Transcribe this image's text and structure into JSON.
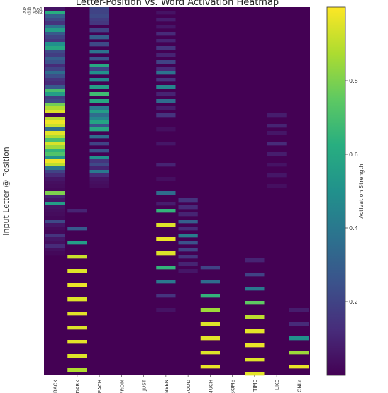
{
  "chart_data": {
    "type": "heatmap",
    "title": "Letter-Position vs. Word Activation Heatmap",
    "ylabel": "Input Letter @ Position",
    "colorbar_label": "Activation Strength",
    "colormap": "viridis",
    "value_range": [
      0.0,
      1.0
    ],
    "colorbar_ticks": [
      "0.2",
      "0.4",
      "0.6",
      "0.8"
    ],
    "columns": [
      "BACK",
      "DARK",
      "EACH",
      "FROM",
      "JUST",
      "BEEN",
      "GOOD",
      "MUCH",
      "SOME",
      "TIME",
      "LIKE",
      "ONLY"
    ],
    "rows_visible_labels": [
      "A @ Pos1",
      "A @ Pos2"
    ],
    "row_count": 104,
    "background_value": 0.0,
    "bands": [
      {
        "column": "BACK",
        "rows": [
          [
            0,
            0.05
          ],
          [
            1,
            0.62
          ],
          [
            2,
            0.3
          ],
          [
            3,
            0.22
          ],
          [
            4,
            0.15
          ],
          [
            5,
            0.38
          ],
          [
            6,
            0.55
          ],
          [
            7,
            0.28
          ],
          [
            8,
            0.2
          ],
          [
            9,
            0.16
          ],
          [
            10,
            0.5
          ],
          [
            11,
            0.6
          ],
          [
            12,
            0.22
          ],
          [
            13,
            0.18
          ],
          [
            14,
            0.3
          ],
          [
            15,
            0.25
          ],
          [
            16,
            0.12
          ],
          [
            17,
            0.2
          ],
          [
            18,
            0.35
          ],
          [
            19,
            0.24
          ],
          [
            20,
            0.15
          ],
          [
            21,
            0.12
          ],
          [
            22,
            0.28
          ],
          [
            23,
            0.7
          ],
          [
            24,
            0.55
          ],
          [
            25,
            0.18
          ],
          [
            26,
            0.22
          ],
          [
            27,
            0.78
          ],
          [
            28,
            0.88
          ],
          [
            29,
            0.95
          ],
          [
            30,
            0.02
          ],
          [
            31,
            0.9
          ],
          [
            32,
            0.98
          ],
          [
            33,
            0.92
          ],
          [
            34,
            0.35
          ],
          [
            35,
            0.96
          ],
          [
            36,
            0.88
          ],
          [
            37,
            0.7
          ],
          [
            38,
            0.94
          ],
          [
            39,
            0.85
          ],
          [
            40,
            0.65
          ],
          [
            41,
            0.72
          ],
          [
            42,
            0.5
          ],
          [
            43,
            0.98
          ],
          [
            44,
            0.9
          ],
          [
            45,
            0.4
          ],
          [
            46,
            0.2
          ],
          [
            47,
            0.12
          ],
          [
            48,
            0.06
          ],
          [
            49,
            0.04
          ],
          [
            50,
            0.03
          ],
          [
            51,
            0.02
          ],
          [
            52,
            0.8
          ],
          [
            53,
            0.1
          ],
          [
            54,
            0.06
          ],
          [
            55,
            0.55
          ],
          [
            56,
            0.05
          ],
          [
            57,
            0.04
          ],
          [
            58,
            0.03
          ],
          [
            59,
            0.02
          ],
          [
            60,
            0.22
          ],
          [
            61,
            0.06
          ],
          [
            62,
            0.03
          ],
          [
            63,
            0.02
          ],
          [
            64,
            0.15
          ],
          [
            65,
            0.06
          ],
          [
            66,
            0.04
          ],
          [
            67,
            0.12
          ],
          [
            68,
            0.04
          ],
          [
            69,
            0.02
          ]
        ]
      },
      {
        "column": "DARK",
        "rows": [
          [
            57,
            0.1
          ],
          [
            62,
            0.28
          ],
          [
            66,
            0.55
          ],
          [
            70,
            0.92
          ],
          [
            74,
            0.95
          ],
          [
            78,
            0.97
          ],
          [
            82,
            0.95
          ],
          [
            86,
            0.96
          ],
          [
            90,
            0.95
          ],
          [
            94,
            0.96
          ],
          [
            98,
            0.95
          ],
          [
            102,
            0.88
          ]
        ]
      },
      {
        "column": "EACH",
        "rows": [
          [
            0,
            0.2
          ],
          [
            1,
            0.2
          ],
          [
            2,
            0.22
          ],
          [
            3,
            0.18
          ],
          [
            4,
            0.16
          ],
          [
            6,
            0.2
          ],
          [
            8,
            0.3
          ],
          [
            10,
            0.22
          ],
          [
            12,
            0.38
          ],
          [
            14,
            0.25
          ],
          [
            16,
            0.6
          ],
          [
            17,
            0.2
          ],
          [
            18,
            0.5
          ],
          [
            20,
            0.45
          ],
          [
            22,
            0.55
          ],
          [
            24,
            0.68
          ],
          [
            26,
            0.6
          ],
          [
            28,
            0.4
          ],
          [
            29,
            0.55
          ],
          [
            30,
            0.35
          ],
          [
            31,
            0.45
          ],
          [
            32,
            0.58
          ],
          [
            33,
            0.25
          ],
          [
            34,
            0.6
          ],
          [
            36,
            0.35
          ],
          [
            38,
            0.2
          ],
          [
            40,
            0.25
          ],
          [
            42,
            0.5
          ],
          [
            43,
            0.15
          ],
          [
            44,
            0.22
          ],
          [
            45,
            0.1
          ],
          [
            46,
            0.4
          ],
          [
            47,
            0.12
          ],
          [
            48,
            0.05
          ],
          [
            49,
            0.04
          ],
          [
            50,
            0.03
          ]
        ]
      },
      {
        "column": "BEEN",
        "rows": [
          [
            1,
            0.05
          ],
          [
            3,
            0.08
          ],
          [
            5,
            0.06
          ],
          [
            7,
            0.12
          ],
          [
            9,
            0.1
          ],
          [
            11,
            0.15
          ],
          [
            13,
            0.1
          ],
          [
            15,
            0.2
          ],
          [
            17,
            0.12
          ],
          [
            18,
            0.38
          ],
          [
            20,
            0.15
          ],
          [
            22,
            0.45
          ],
          [
            24,
            0.1
          ],
          [
            26,
            0.35
          ],
          [
            28,
            0.08
          ],
          [
            30,
            0.15
          ],
          [
            34,
            0.04
          ],
          [
            38,
            0.06
          ],
          [
            44,
            0.1
          ],
          [
            48,
            0.04
          ],
          [
            52,
            0.35
          ],
          [
            55,
            0.08
          ],
          [
            57,
            0.65
          ],
          [
            61,
            0.95
          ],
          [
            65,
            0.97
          ],
          [
            69,
            0.95
          ],
          [
            73,
            0.65
          ],
          [
            77,
            0.4
          ],
          [
            81,
            0.15
          ],
          [
            85,
            0.05
          ]
        ]
      },
      {
        "column": "GOOD",
        "rows": [
          [
            54,
            0.15
          ],
          [
            56,
            0.12
          ],
          [
            58,
            0.1
          ],
          [
            60,
            0.3
          ],
          [
            62,
            0.12
          ],
          [
            64,
            0.42
          ],
          [
            66,
            0.25
          ],
          [
            68,
            0.2
          ],
          [
            70,
            0.15
          ],
          [
            72,
            0.1
          ],
          [
            74,
            0.06
          ]
        ]
      },
      {
        "column": "MUCH",
        "rows": [
          [
            73,
            0.2
          ],
          [
            77,
            0.35
          ],
          [
            81,
            0.65
          ],
          [
            85,
            0.85
          ],
          [
            89,
            0.95
          ],
          [
            93,
            0.96
          ],
          [
            97,
            0.95
          ],
          [
            101,
            0.97
          ]
        ]
      },
      {
        "column": "TIME",
        "rows": [
          [
            71,
            0.1
          ],
          [
            75,
            0.2
          ],
          [
            79,
            0.4
          ],
          [
            83,
            0.75
          ],
          [
            87,
            0.9
          ],
          [
            91,
            0.96
          ],
          [
            95,
            0.97
          ],
          [
            99,
            0.95
          ],
          [
            103,
            0.96
          ]
        ]
      },
      {
        "column": "LIKE",
        "rows": [
          [
            30,
            0.08
          ],
          [
            33,
            0.1
          ],
          [
            35,
            0.06
          ],
          [
            38,
            0.12
          ],
          [
            41,
            0.08
          ],
          [
            44,
            0.05
          ],
          [
            47,
            0.06
          ],
          [
            50,
            0.04
          ]
        ]
      },
      {
        "column": "ONLY",
        "rows": [
          [
            85,
            0.08
          ],
          [
            89,
            0.12
          ],
          [
            93,
            0.5
          ],
          [
            97,
            0.85
          ],
          [
            101,
            0.97
          ]
        ]
      }
    ]
  }
}
